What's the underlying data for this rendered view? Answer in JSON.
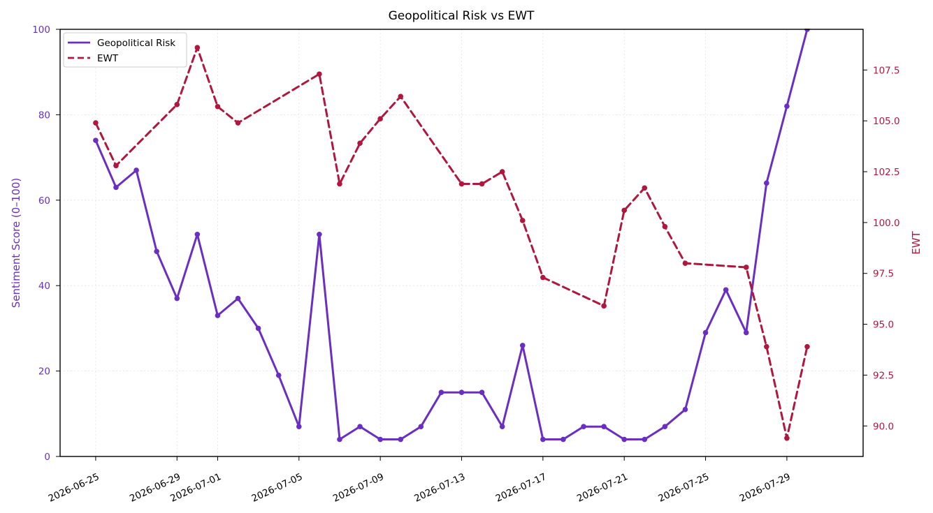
{
  "chart_data": {
    "type": "line",
    "title": "Geopolitical Risk vs EWT",
    "xlabel": "",
    "ylabel_left": "Sentiment Score (0–100)",
    "ylabel_right": "EWT",
    "ylim_left": [
      0,
      100
    ],
    "ylim_right": [
      88.5,
      109.5
    ],
    "xlim": [
      "2026-06-23T06:00",
      "2026-08-01T18:00"
    ],
    "x_ticks": [
      "2026-06-25",
      "2026-06-29",
      "2026-07-01",
      "2026-07-05",
      "2026-07-09",
      "2026-07-13",
      "2026-07-17",
      "2026-07-21",
      "2026-07-25",
      "2026-07-29"
    ],
    "y_ticks_left": [
      "0",
      "20",
      "40",
      "60",
      "80",
      "100"
    ],
    "y_ticks_right": [
      "90.0",
      "92.5",
      "95.0",
      "97.5",
      "100.0",
      "102.5",
      "105.0",
      "107.5"
    ],
    "grid": true,
    "legend_position": "top-left",
    "colors": {
      "left": "#6a2fc2",
      "right": "#b0173f"
    },
    "series": [
      {
        "name": "Geopolitical Risk",
        "axis": "left",
        "style": "solid",
        "color": "#6a2fc2",
        "points": [
          [
            "2026-06-25",
            74
          ],
          [
            "2026-06-26",
            63
          ],
          [
            "2026-06-27",
            67
          ],
          [
            "2026-06-28",
            48
          ],
          [
            "2026-06-29",
            37
          ],
          [
            "2026-06-30",
            52
          ],
          [
            "2026-07-01",
            33
          ],
          [
            "2026-07-02",
            37
          ],
          [
            "2026-07-03",
            30
          ],
          [
            "2026-07-04",
            19
          ],
          [
            "2026-07-05",
            7
          ],
          [
            "2026-07-06",
            52
          ],
          [
            "2026-07-07",
            4
          ],
          [
            "2026-07-08",
            7
          ],
          [
            "2026-07-09",
            4
          ],
          [
            "2026-07-10",
            4
          ],
          [
            "2026-07-11",
            7
          ],
          [
            "2026-07-12",
            15
          ],
          [
            "2026-07-13",
            15
          ],
          [
            "2026-07-14",
            15
          ],
          [
            "2026-07-15",
            7
          ],
          [
            "2026-07-16",
            26
          ],
          [
            "2026-07-17",
            4
          ],
          [
            "2026-07-18",
            4
          ],
          [
            "2026-07-19",
            7
          ],
          [
            "2026-07-20",
            7
          ],
          [
            "2026-07-21",
            4
          ],
          [
            "2026-07-22",
            4
          ],
          [
            "2026-07-23",
            7
          ],
          [
            "2026-07-24",
            11
          ],
          [
            "2026-07-25",
            29
          ],
          [
            "2026-07-26",
            39
          ],
          [
            "2026-07-27",
            29
          ],
          [
            "2026-07-28",
            64
          ],
          [
            "2026-07-29",
            82
          ],
          [
            "2026-07-30",
            100
          ]
        ]
      },
      {
        "name": "EWT",
        "axis": "right",
        "style": "dashed",
        "color": "#b0173f",
        "points": [
          [
            "2026-06-25",
            104.9
          ],
          [
            "2026-06-26",
            102.8
          ],
          [
            "2026-06-29",
            105.8
          ],
          [
            "2026-06-30",
            108.6
          ],
          [
            "2026-07-01",
            105.7
          ],
          [
            "2026-07-02",
            104.9
          ],
          [
            "2026-07-06",
            107.3
          ],
          [
            "2026-07-07",
            101.9
          ],
          [
            "2026-07-08",
            103.9
          ],
          [
            "2026-07-09",
            105.1
          ],
          [
            "2026-07-10",
            106.2
          ],
          [
            "2026-07-13",
            101.9
          ],
          [
            "2026-07-14",
            101.9
          ],
          [
            "2026-07-15",
            102.5
          ],
          [
            "2026-07-16",
            100.1
          ],
          [
            "2026-07-17",
            97.3
          ],
          [
            "2026-07-20",
            95.9
          ],
          [
            "2026-07-21",
            100.6
          ],
          [
            "2026-07-22",
            101.7
          ],
          [
            "2026-07-23",
            99.8
          ],
          [
            "2026-07-24",
            98.0
          ],
          [
            "2026-07-27",
            97.8
          ],
          [
            "2026-07-28",
            93.9
          ],
          [
            "2026-07-29",
            89.4
          ],
          [
            "2026-07-30",
            93.9
          ]
        ]
      }
    ]
  }
}
